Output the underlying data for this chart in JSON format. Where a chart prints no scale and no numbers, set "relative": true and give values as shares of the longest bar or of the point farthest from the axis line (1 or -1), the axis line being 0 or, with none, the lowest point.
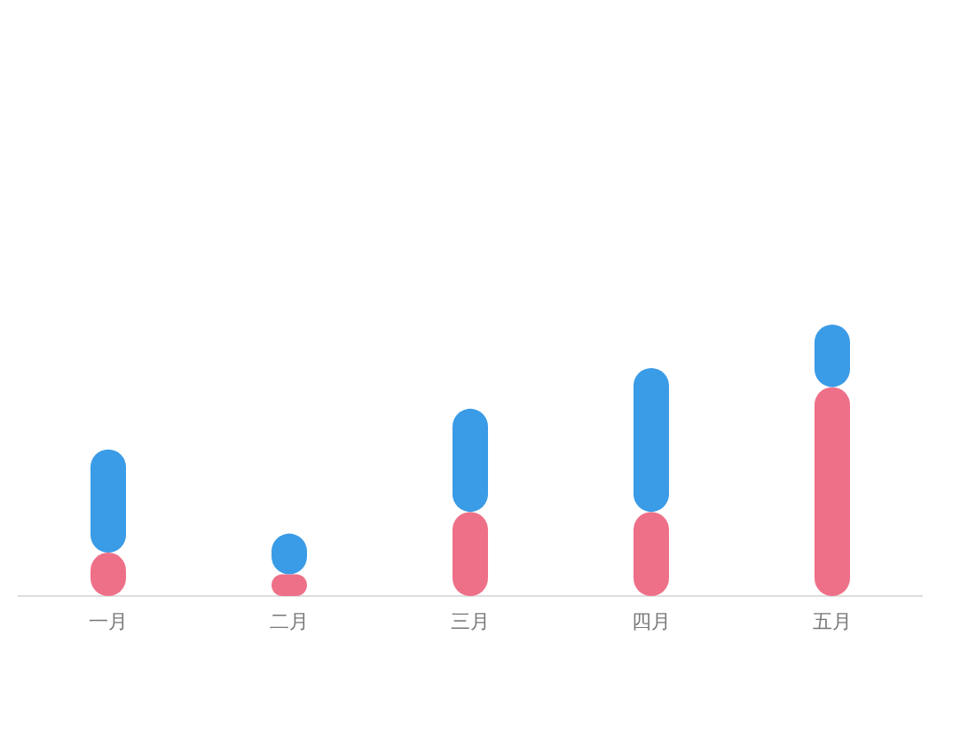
{
  "chart_data": {
    "type": "bar",
    "stacked": true,
    "relative": true,
    "categories": [
      "一月",
      "二月",
      "三月",
      "四月",
      "五月"
    ],
    "series": [
      {
        "color": "#ee7088",
        "values": [
          0.16,
          0.08,
          0.31,
          0.31,
          0.77
        ]
      },
      {
        "color": "#3a9be6",
        "values": [
          0.38,
          0.15,
          0.38,
          0.53,
          0.23
        ]
      }
    ]
  }
}
